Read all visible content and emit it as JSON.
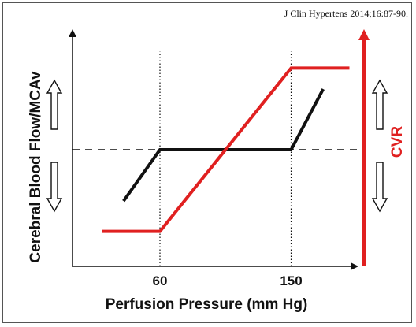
{
  "citation": "J Clin Hypertens 2014;16:87-90.",
  "chart_data": {
    "type": "line",
    "xlabel": "Perfusion Pressure (mm Hg)",
    "ylabel": "Cerebral Blood Flow/MCAv",
    "y2label": "CVR",
    "xticks": [
      {
        "value": 60,
        "label": "60"
      },
      {
        "value": 150,
        "label": "150"
      }
    ],
    "xlim": [
      0,
      200
    ],
    "ylim": [
      0,
      100
    ],
    "series": [
      {
        "color": "#111111",
        "points": [
          [
            35,
            28
          ],
          [
            60,
            50
          ],
          [
            150,
            50
          ],
          [
            172,
            76
          ]
        ]
      },
      {
        "color": "#e02020",
        "points": [
          [
            20,
            15
          ],
          [
            60,
            15
          ],
          [
            150,
            85
          ],
          [
            190,
            85
          ]
        ]
      }
    ],
    "reference_lines": {
      "horizontal_y": 50,
      "vertical_x": [
        60,
        150
      ]
    },
    "arrows": {
      "left": [
        "up",
        "down"
      ],
      "right": [
        "up",
        "down"
      ]
    },
    "colors": {
      "axis": "#111111",
      "cvr_axis": "#e02020"
    }
  }
}
